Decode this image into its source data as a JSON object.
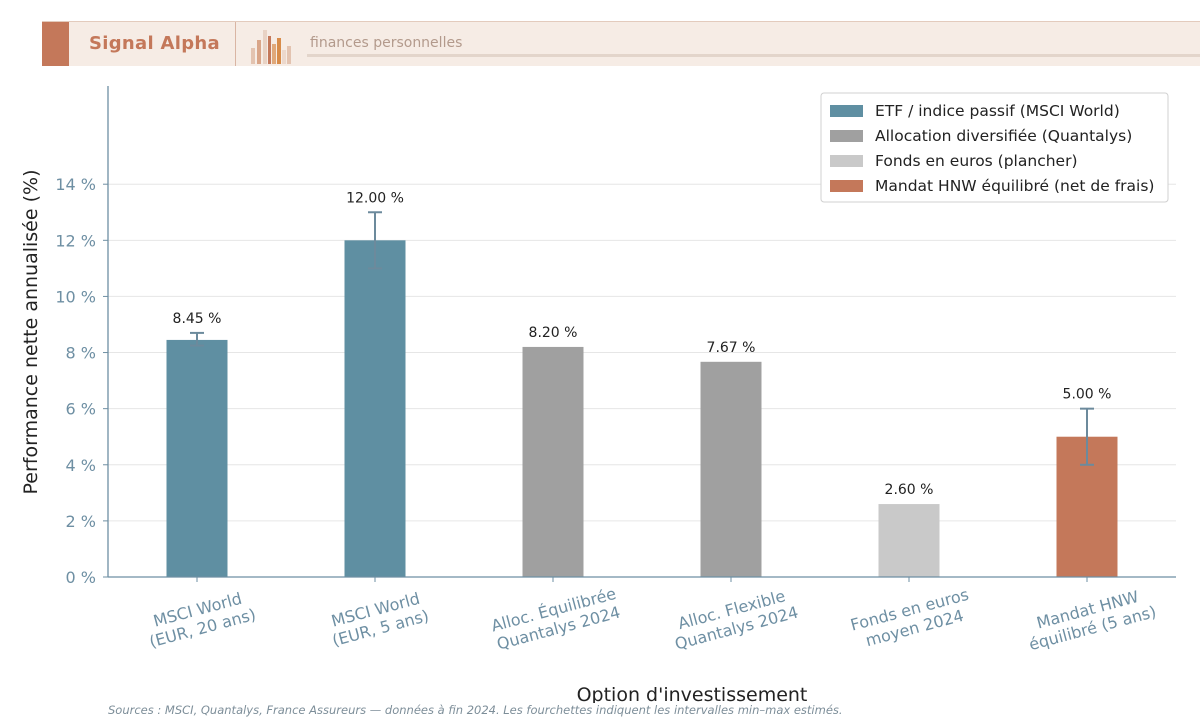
{
  "header": {
    "brand": "Signal Alpha",
    "tagline": "finances personnelles"
  },
  "colors": {
    "etf": "#5f8fa2",
    "allocation": "#a0a0a0",
    "fonds": "#c9c9c9",
    "mandat": "#c4785a",
    "axis": "#6e8fa3",
    "brand": "#c4785a"
  },
  "chart_data": {
    "type": "bar",
    "xlabel": "Option d'investissement",
    "ylabel": "Performance nette annualisée (%)",
    "ylim": [
      0,
      17.5
    ],
    "yticks": [
      0,
      2,
      4,
      6,
      8,
      10,
      12,
      14
    ],
    "ytick_labels": [
      "0 %",
      "2 %",
      "4 %",
      "6 %",
      "8 %",
      "10 %",
      "12 %",
      "14 %"
    ],
    "grid": true,
    "legend_position": "top-right",
    "legend": [
      {
        "label": "ETF / indice passif (MSCI World)",
        "color": "#5f8fa2"
      },
      {
        "label": "Allocation diversifiée (Quantalys)",
        "color": "#a0a0a0"
      },
      {
        "label": "Fonds en euros (plancher)",
        "color": "#c9c9c9"
      },
      {
        "label": "Mandat HNW équilibré (net de frais)",
        "color": "#c4785a"
      }
    ],
    "bars": [
      {
        "category": [
          "MSCI World",
          "(EUR, 20 ans)"
        ],
        "value": 8.45,
        "label": "8.45 %",
        "group": "etf",
        "err": [
          8.25,
          8.7
        ]
      },
      {
        "category": [
          "MSCI World",
          "(EUR, 5 ans)"
        ],
        "value": 12.0,
        "label": "12.00 %",
        "group": "etf",
        "err": [
          11.0,
          13.0
        ]
      },
      {
        "category": [
          "Alloc. Équilibrée",
          "Quantalys 2024"
        ],
        "value": 8.2,
        "label": "8.20 %",
        "group": "allocation",
        "err": null
      },
      {
        "category": [
          "Alloc. Flexible",
          "Quantalys 2024"
        ],
        "value": 7.67,
        "label": "7.67 %",
        "group": "allocation",
        "err": null
      },
      {
        "category": [
          "Fonds en euros",
          "moyen 2024"
        ],
        "value": 2.6,
        "label": "2.60 %",
        "group": "fonds",
        "err": null
      },
      {
        "category": [
          "Mandat HNW",
          "équilibré (5 ans)"
        ],
        "value": 5.0,
        "label": "5.00 %",
        "group": "mandat",
        "err": [
          4.0,
          6.0
        ]
      }
    ]
  },
  "source": "Sources : MSCI, Quantalys, France Assureurs — données à fin 2024. Les fourchettes indiquent les intervalles min–max estimés."
}
